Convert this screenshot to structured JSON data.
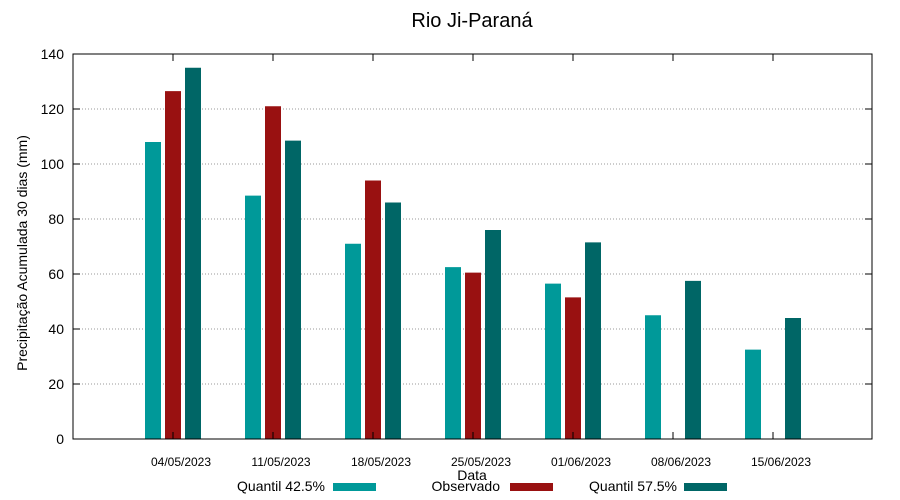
{
  "chart_data": {
    "type": "bar",
    "title": "Rio Ji-Paraná",
    "xlabel": "Data",
    "ylabel": "Precipitação Acumulada 30 dias (mm)",
    "ylim": [
      0,
      140
    ],
    "yticks": [
      0,
      20,
      40,
      60,
      80,
      100,
      120,
      140
    ],
    "grid": true,
    "legend_position": "bottom",
    "categories": [
      "04/05/2023",
      "11/05/2023",
      "18/05/2023",
      "25/05/2023",
      "01/06/2023",
      "08/06/2023",
      "15/06/2023"
    ],
    "series": [
      {
        "name": "Quantil 42.5%",
        "color": "#009999",
        "values": [
          108,
          88.5,
          71,
          62.5,
          56.5,
          45,
          32.5
        ]
      },
      {
        "name": "Observado",
        "color": "#991111",
        "values": [
          126.5,
          121,
          94,
          60.5,
          51.5,
          null,
          null
        ]
      },
      {
        "name": "Quantil 57.5%",
        "color": "#006666",
        "values": [
          135,
          108.5,
          86,
          76,
          71.5,
          57.5,
          44
        ]
      }
    ]
  }
}
